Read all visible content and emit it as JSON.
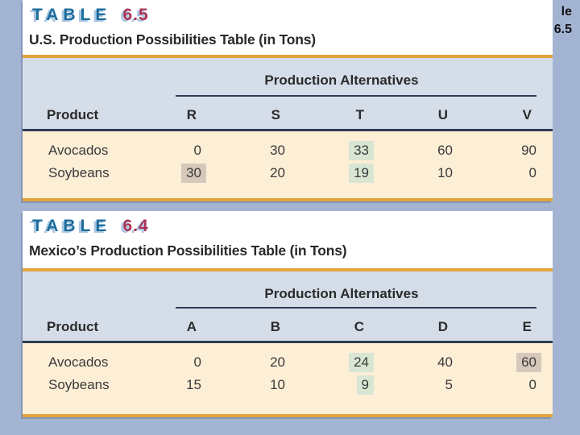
{
  "corner_text": {
    "line1": "le",
    "line2": "6.5"
  },
  "tables": [
    {
      "label_word": "TABLE",
      "label_number": "6.5",
      "subtitle": "U.S. Production Possibilities Table (in Tons)",
      "group_header": "Production Alternatives",
      "product_header": "Product",
      "columns": [
        "R",
        "S",
        "T",
        "U",
        "V"
      ],
      "rows": [
        {
          "product": "Avocados",
          "values": [
            "0",
            "30",
            "33",
            "60",
            "90"
          ],
          "highlights": [
            "",
            "",
            "green",
            "",
            ""
          ]
        },
        {
          "product": "Soybeans",
          "values": [
            "30",
            "20",
            "19",
            "10",
            "0"
          ],
          "highlights": [
            "tan",
            "",
            "green",
            "",
            ""
          ]
        }
      ]
    },
    {
      "label_word": "TABLE",
      "label_number": "6.4",
      "subtitle": "Mexico’s Production Possibilities Table (in Tons)",
      "group_header": "Production Alternatives",
      "product_header": "Product",
      "columns": [
        "A",
        "B",
        "C",
        "D",
        "E"
      ],
      "rows": [
        {
          "product": "Avocados",
          "values": [
            "0",
            "20",
            "24",
            "40",
            "60"
          ],
          "highlights": [
            "",
            "",
            "green",
            "",
            "tan"
          ]
        },
        {
          "product": "Soybeans",
          "values": [
            "15",
            "10",
            "9",
            "5",
            "0"
          ],
          "highlights": [
            "",
            "",
            "green",
            "",
            ""
          ]
        }
      ]
    }
  ],
  "colors": {
    "bg_blue": "#a3b4d3",
    "band_blue": "#d5dde9",
    "band_cream": "#fdeed6",
    "rule_orange": "#e2a33c",
    "line_navy": "#2e3d55",
    "title_teal": "#1c6c9d",
    "title_crimson": "#a93354",
    "title_shadow": "#a9c6e2",
    "hl_green": "#d9e6d4",
    "hl_tan": "#d6c8ba"
  }
}
